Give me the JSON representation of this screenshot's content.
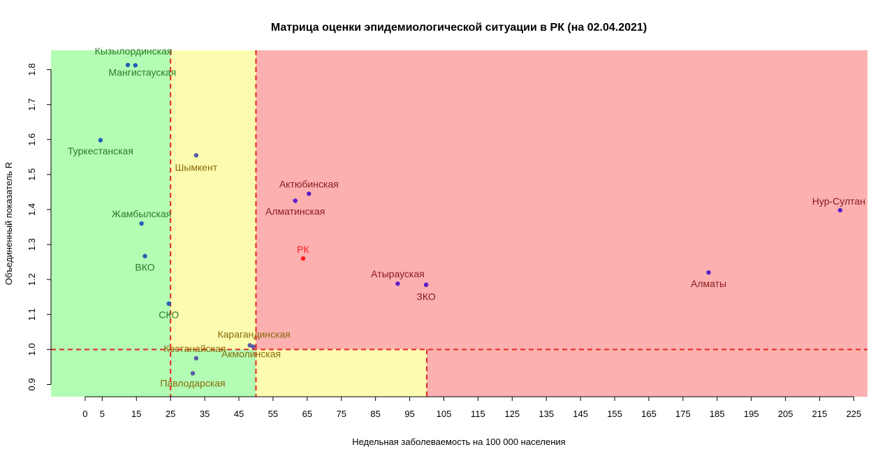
{
  "chart_data": {
    "type": "scatter",
    "title": "Матрица оценки эпидемиологической ситуации в РК (на 02.04.2021)",
    "xlabel": "Недельная заболеваемость на 100 000 населения",
    "ylabel": "Объединенный показатель R",
    "xlim": [
      -10,
      229
    ],
    "ylim": [
      0.865,
      1.855
    ],
    "x_ticks": [
      "0",
      "5",
      "15",
      "25",
      "35",
      "45",
      "55",
      "65",
      "75",
      "85",
      "95",
      "105",
      "115",
      "125",
      "135",
      "145",
      "155",
      "165",
      "175",
      "185",
      "195",
      "205",
      "215",
      "225"
    ],
    "x_tick_values": [
      0,
      5,
      15,
      25,
      35,
      45,
      55,
      65,
      75,
      85,
      95,
      105,
      115,
      125,
      135,
      145,
      155,
      165,
      175,
      185,
      195,
      205,
      215,
      225
    ],
    "y_ticks": [
      "0.9",
      "1.0",
      "1.1",
      "1.2",
      "1.3",
      "1.4",
      "1.5",
      "1.6",
      "1.7",
      "1.8"
    ],
    "y_tick_values": [
      0.9,
      1.0,
      1.1,
      1.2,
      1.3,
      1.4,
      1.5,
      1.6,
      1.7,
      1.8
    ],
    "thresholds": {
      "x_low": 25,
      "x_mid": 50,
      "x_high": 100,
      "y": 1.0
    },
    "zone_colors": {
      "green": "#b3fcb3",
      "yellow": "#fcfcb0",
      "red": "#fcb0b0",
      "threshold_line": "#e8261c"
    },
    "points": [
      {
        "label": "Кызылординская",
        "x": 12.5,
        "y": 1.813,
        "zone": "green"
      },
      {
        "label": "Мангистауская",
        "x": 14.7,
        "y": 1.812,
        "zone": "green"
      },
      {
        "label": "Туркестанская",
        "x": 4.5,
        "y": 1.598,
        "zone": "green"
      },
      {
        "label": "Шымкент",
        "x": 32.5,
        "y": 1.555,
        "zone": "yellow"
      },
      {
        "label": "Жамбылская",
        "x": 16.5,
        "y": 1.36,
        "zone": "green"
      },
      {
        "label": "ВКО",
        "x": 17.5,
        "y": 1.267,
        "zone": "green"
      },
      {
        "label": "СКО",
        "x": 24.5,
        "y": 1.131,
        "zone": "green"
      },
      {
        "label": "Актюбинская",
        "x": 65.5,
        "y": 1.445,
        "zone": "red"
      },
      {
        "label": "Алматинская",
        "x": 61.5,
        "y": 1.425,
        "zone": "red"
      },
      {
        "label": "РК",
        "x": 63.8,
        "y": 1.26,
        "zone": "rk"
      },
      {
        "label": "Атырауская",
        "x": 91.5,
        "y": 1.188,
        "zone": "red"
      },
      {
        "label": "ЗКО",
        "x": 99.8,
        "y": 1.185,
        "zone": "red"
      },
      {
        "label": "Алматы",
        "x": 182.5,
        "y": 1.22,
        "zone": "red"
      },
      {
        "label": "Нур-Султан",
        "x": 221,
        "y": 1.398,
        "zone": "red"
      },
      {
        "label": "Карагандинская",
        "x": 48.2,
        "y": 1.012,
        "zone": "yellow"
      },
      {
        "label": "Акмолинская",
        "x": 49.2,
        "y": 1.008,
        "zone": "yellow"
      },
      {
        "label": "Костанайская",
        "x": 32.5,
        "y": 0.975,
        "zone": "yellow"
      },
      {
        "label": "Павлодарская",
        "x": 31.5,
        "y": 0.932,
        "zone": "yellow"
      }
    ],
    "point_colors": {
      "green": "#1f5fb5",
      "yellow": "#5a5aa8",
      "red": "#5a1fc8",
      "rk": "#ff1a1a"
    },
    "label_colors": {
      "green": "#2a7a2a",
      "yellow": "#8a6a0a",
      "red": "#8a1a1a",
      "rk": "#ff1a1a"
    }
  }
}
